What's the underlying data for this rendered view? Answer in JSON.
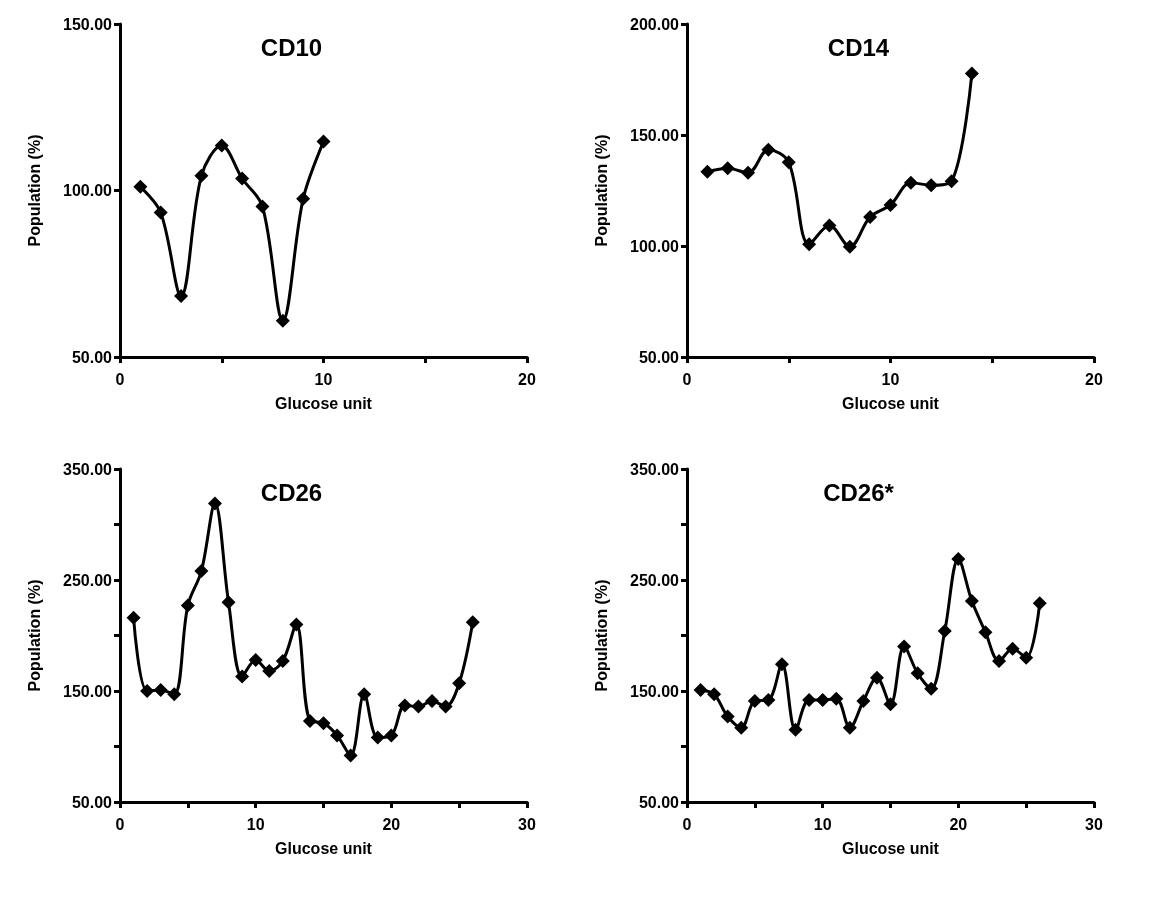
{
  "chart_data": [
    {
      "type": "line",
      "title": "CD10",
      "xlabel": "Glucose unit",
      "ylabel": "Population (%)",
      "marker": "diamond",
      "x": [
        1,
        2,
        3,
        4,
        5,
        6,
        7,
        8,
        9,
        10
      ],
      "series": [
        {
          "color": "#000000",
          "values": [
            101.1,
            93.4,
            68.3,
            104.4,
            113.5,
            103.6,
            95.2,
            60.9,
            97.5,
            114.7
          ]
        }
      ],
      "xlim": [
        0,
        20
      ],
      "xticks": [
        0,
        {
          "value": 5,
          "label": null
        },
        10,
        {
          "value": 15,
          "label": null
        },
        20
      ],
      "ylim": [
        50,
        150
      ],
      "yticks": [
        {
          "value": 50,
          "label": "50.00"
        },
        {
          "value": 100,
          "label": "100.00"
        },
        {
          "value": 150,
          "label": "150.00"
        }
      ]
    },
    {
      "type": "line",
      "title": "CD14",
      "xlabel": "Glucose unit",
      "ylabel": "Population (%)",
      "marker": "diamond",
      "x": [
        1,
        2,
        3,
        4,
        5,
        6,
        7,
        8,
        9,
        10,
        11,
        12,
        13,
        14
      ],
      "series": [
        {
          "color": "#000000",
          "values": [
            133.4,
            135,
            133,
            143.4,
            137.7,
            100.8,
            109.2,
            99.7,
            113.1,
            118.5,
            128.5,
            127.4,
            129.2,
            177.7
          ]
        }
      ],
      "xlim": [
        0,
        20
      ],
      "xticks": [
        0,
        {
          "value": 5,
          "label": null
        },
        10,
        {
          "value": 15,
          "label": null
        },
        20
      ],
      "ylim": [
        50,
        200
      ],
      "yticks": [
        {
          "value": 50,
          "label": "50.00"
        },
        {
          "value": 100,
          "label": "100.00"
        },
        {
          "value": 150,
          "label": "150.00"
        },
        {
          "value": 200,
          "label": "200.00"
        }
      ]
    },
    {
      "type": "line",
      "title": "CD26",
      "xlabel": "Glucose unit",
      "ylabel": "Population (%)",
      "marker": "diamond",
      "x": [
        1,
        2,
        3,
        4,
        5,
        6,
        7,
        8,
        9,
        10,
        11,
        12,
        13,
        14,
        15,
        16,
        17,
        18,
        19,
        20,
        21,
        22,
        23,
        24,
        25,
        26
      ],
      "series": [
        {
          "color": "#000000",
          "values": [
            216,
            150,
            151,
            147,
            227,
            258,
            319,
            230,
            163,
            178,
            168,
            177,
            210,
            123,
            121,
            110,
            92,
            147,
            108,
            110,
            137,
            136,
            141,
            136,
            157,
            212
          ]
        }
      ],
      "xlim": [
        0,
        30
      ],
      "xticks": [
        0,
        {
          "value": 5,
          "label": null
        },
        10,
        {
          "value": 15,
          "label": null
        },
        20,
        {
          "value": 25,
          "label": null
        },
        30
      ],
      "ylim": [
        50,
        350
      ],
      "yticks": [
        {
          "value": 50,
          "label": "50.00"
        },
        {
          "value": 100,
          "label": null
        },
        {
          "value": 150,
          "label": "150.00"
        },
        {
          "value": 200,
          "label": null
        },
        {
          "value": 250,
          "label": "250.00"
        },
        {
          "value": 300,
          "label": null
        },
        {
          "value": 350,
          "label": "350.00"
        }
      ]
    },
    {
      "type": "line",
      "title": "CD26*",
      "xlabel": "Glucose unit",
      "ylabel": "Population (%)",
      "marker": "diamond",
      "x": [
        1,
        2,
        3,
        4,
        5,
        6,
        7,
        8,
        9,
        10,
        11,
        12,
        13,
        14,
        15,
        16,
        17,
        18,
        19,
        20,
        21,
        22,
        23,
        24,
        25,
        26
      ],
      "series": [
        {
          "color": "#000000",
          "values": [
            151,
            147,
            127,
            117,
            141,
            142,
            174,
            115,
            142,
            142,
            143,
            117,
            141,
            162,
            138,
            190,
            166,
            152,
            204,
            269,
            231,
            203,
            177,
            188,
            180,
            229
          ]
        }
      ],
      "xlim": [
        0,
        30
      ],
      "xticks": [
        0,
        {
          "value": 5,
          "label": null
        },
        10,
        {
          "value": 15,
          "label": null
        },
        20,
        {
          "value": 25,
          "label": null
        },
        30
      ],
      "ylim": [
        50,
        350
      ],
      "yticks": [
        {
          "value": 50,
          "label": "50.00"
        },
        {
          "value": 100,
          "label": null
        },
        {
          "value": 150,
          "label": "150.00"
        },
        {
          "value": 200,
          "label": null
        },
        {
          "value": 250,
          "label": "250.00"
        },
        {
          "value": 300,
          "label": null
        },
        {
          "value": 350,
          "label": "350.00"
        }
      ]
    }
  ]
}
